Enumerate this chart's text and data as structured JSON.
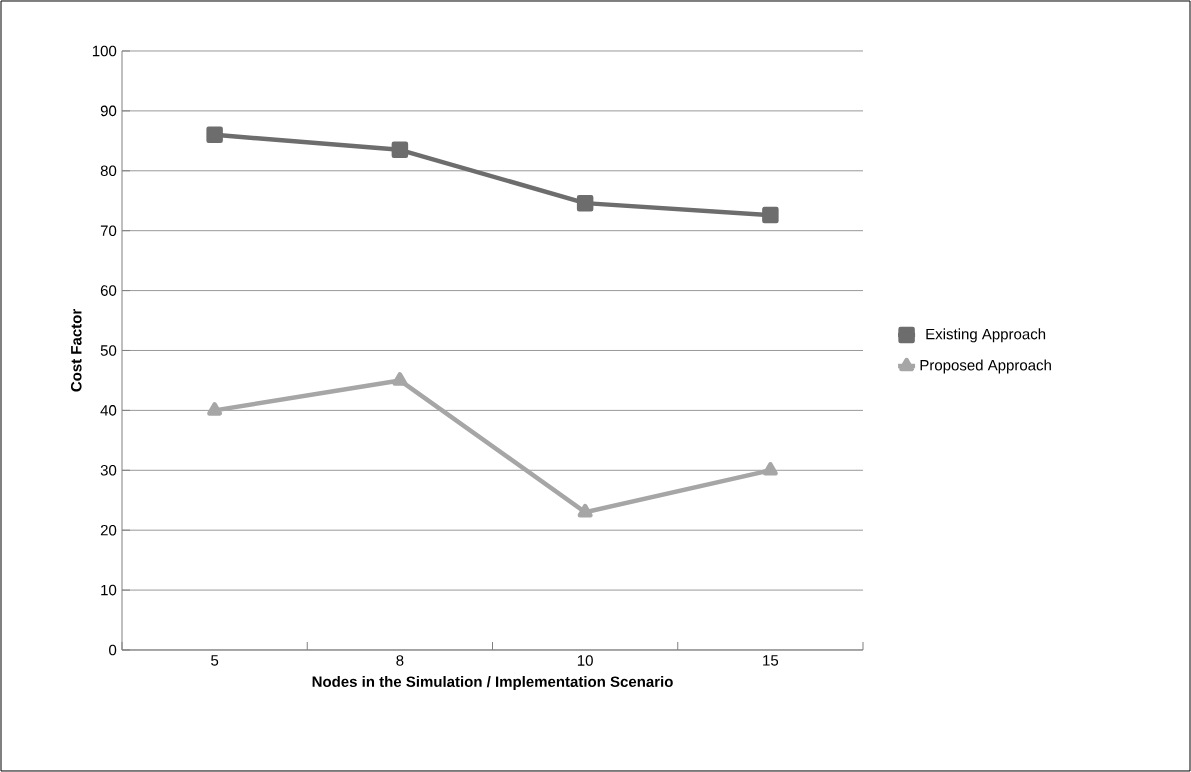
{
  "chart_data": {
    "type": "line",
    "xlabel": "Nodes in the Simulation  / Implementation Scenario",
    "ylabel": "Cost Factor",
    "categories": [
      "5",
      "8",
      "10",
      "15"
    ],
    "series": [
      {
        "name": "Existing Approach",
        "color": "#6d6d6d",
        "marker": "square",
        "values": [
          86,
          83.5,
          74.6,
          72.6
        ]
      },
      {
        "name": "Proposed Approach",
        "color": "#a6a6a6",
        "marker": "triangle",
        "values": [
          40,
          45,
          23,
          30
        ]
      }
    ],
    "ylim": [
      0,
      100
    ],
    "yticks": [
      0,
      10,
      20,
      30,
      40,
      50,
      60,
      70,
      80,
      90,
      100
    ],
    "grid": "y",
    "legend": "right",
    "line_style": "solid"
  }
}
